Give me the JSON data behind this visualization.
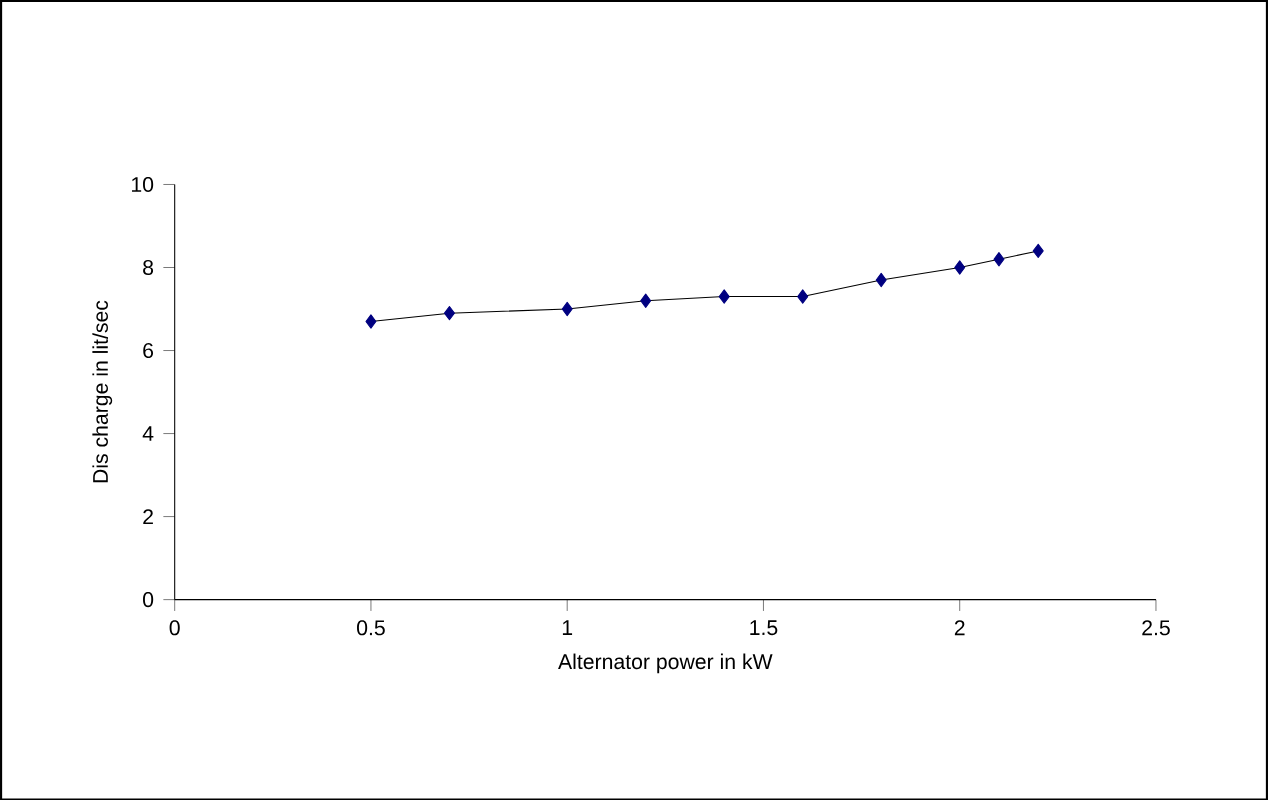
{
  "chart_data": {
    "type": "line",
    "xlabel": "Alternator power in kW",
    "ylabel": "Dis charge in lit/sec",
    "x": [
      0.5,
      0.7,
      1.0,
      1.2,
      1.4,
      1.6,
      1.8,
      2.0,
      2.1,
      2.2
    ],
    "series": [
      {
        "color": "#000080",
        "values": [
          6.7,
          6.9,
          7.0,
          7.2,
          7.3,
          7.3,
          7.7,
          8.0,
          8.2,
          8.4
        ]
      }
    ],
    "xlim": [
      0,
      2.5
    ],
    "xticks": [
      0,
      0.5,
      1,
      1.5,
      2,
      2.5
    ],
    "ylim": [
      0,
      10
    ],
    "yticks": [
      0,
      2,
      4,
      6,
      8,
      10
    ],
    "marker": "diamond",
    "line_style": "solid"
  }
}
